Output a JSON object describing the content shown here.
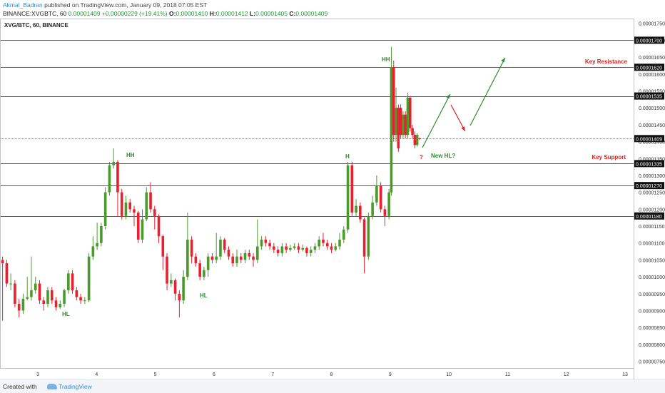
{
  "header": {
    "author": "Akmal_Badran",
    "published": "published on TradingView.com, January 09, 2018 07:05 EST",
    "symbol": "BINANCE:XVGBTC, 60",
    "price": "0.00001409",
    "change": "+0.00000229 (+19.41%)",
    "o_label": "O:",
    "o_value": "0.00001410",
    "h_label": "H:",
    "h_value": "0.00001412",
    "l_label": "L:",
    "l_value": "0.00001405",
    "c_label": "C:",
    "c_value": "0.00001409"
  },
  "footer": {
    "created_with": "Created with",
    "brand": "TradingView"
  },
  "colors": {
    "up": "#4a9a2c",
    "down": "#e8202f",
    "annot_green": "#2e8b2e",
    "annot_red": "#e02020"
  },
  "chart_data": {
    "type": "candlestick",
    "title": "XVG/BTC, 60, BINANCE",
    "xlabel": "",
    "ylabel": "",
    "x_tick_labels": [
      "3",
      "4",
      "5",
      "6",
      "7",
      "8",
      "9",
      "10",
      "11",
      "12",
      "13"
    ],
    "ylim": [
      7.3e-06,
      1.76e-05
    ],
    "y_tick_labels": [
      "0.00000750",
      "0.00000800",
      "0.00000850",
      "0.00000900",
      "0.00000950",
      "0.00001000",
      "0.00001050",
      "0.00001100",
      "0.00001150",
      "0.00001200",
      "0.00001250",
      "0.00001300",
      "0.00001350",
      "0.00001400",
      "0.00001450",
      "0.00001500",
      "0.00001550",
      "0.00001600",
      "0.00001650",
      "0.00001700",
      "0.00001750"
    ],
    "horizontal_levels": [
      "0.00001700",
      "0.00001620",
      "0.00001535",
      "0.00001335",
      "0.00001270",
      "0.00001180"
    ],
    "last_price": "0.00001409",
    "annotations": {
      "hh_1": "HH",
      "hh_2": "HH",
      "h": "H",
      "hl_1": "HL",
      "hl_2": "HL",
      "question": "?",
      "new_hl": "New HL?",
      "key_resistance": "Key Resistance",
      "key_support": "Key Support"
    },
    "candles": [
      [
        2.05,
        1162,
        1167,
        1144,
        1179
      ],
      [
        2.12,
        1167,
        1175,
        1155,
        1190
      ],
      [
        2.19,
        1175,
        1151,
        1140,
        1182
      ],
      [
        2.26,
        1151,
        1090,
        1078,
        1158
      ],
      [
        2.33,
        1090,
        1050,
        1040,
        1100
      ],
      [
        2.4,
        1050,
        1040,
        870,
        1060
      ],
      [
        2.47,
        1040,
        980,
        970,
        1050
      ],
      [
        2.54,
        980,
        980,
        960,
        1010
      ],
      [
        2.61,
        980,
        920,
        910,
        990
      ],
      [
        2.68,
        920,
        900,
        880,
        935
      ],
      [
        2.75,
        900,
        935,
        890,
        950
      ],
      [
        2.82,
        935,
        940,
        930,
        1000
      ],
      [
        2.89,
        940,
        960,
        930,
        1060
      ],
      [
        2.96,
        960,
        980,
        950,
        1000
      ],
      [
        3.03,
        980,
        930,
        920,
        990
      ],
      [
        3.1,
        930,
        920,
        900,
        940
      ],
      [
        3.17,
        920,
        960,
        910,
        970
      ],
      [
        3.24,
        960,
        930,
        920,
        970
      ],
      [
        3.31,
        930,
        910,
        900,
        940
      ],
      [
        3.38,
        910,
        920,
        905,
        930
      ],
      [
        3.45,
        920,
        960,
        910,
        965
      ],
      [
        3.52,
        960,
        1010,
        950,
        1020
      ],
      [
        3.59,
        1010,
        960,
        950,
        1020
      ],
      [
        3.66,
        960,
        940,
        930,
        970
      ],
      [
        3.73,
        940,
        930,
        920,
        950
      ],
      [
        3.8,
        930,
        930,
        920,
        940
      ],
      [
        3.87,
        930,
        1060,
        925,
        1070
      ],
      [
        3.94,
        1060,
        1090,
        1050,
        1120
      ],
      [
        4.01,
        1090,
        1100,
        1080,
        1160
      ],
      [
        4.08,
        1100,
        1150,
        1090,
        1160
      ],
      [
        4.15,
        1150,
        1250,
        1140,
        1265
      ],
      [
        4.22,
        1250,
        1330,
        1240,
        1340
      ],
      [
        4.29,
        1330,
        1340,
        1320,
        1380
      ],
      [
        4.36,
        1340,
        1250,
        1180,
        1345
      ],
      [
        4.43,
        1250,
        1180,
        1170,
        1260
      ],
      [
        4.5,
        1180,
        1220,
        1170,
        1240
      ],
      [
        4.57,
        1220,
        1200,
        1190,
        1230
      ],
      [
        4.64,
        1200,
        1190,
        1150,
        1210
      ],
      [
        4.71,
        1190,
        1110,
        1100,
        1195
      ],
      [
        4.78,
        1110,
        1170,
        1100,
        1200
      ],
      [
        4.85,
        1170,
        1250,
        1165,
        1265
      ],
      [
        4.92,
        1250,
        1200,
        1190,
        1280
      ],
      [
        4.99,
        1200,
        1180,
        1140,
        1210
      ],
      [
        5.06,
        1180,
        1120,
        1100,
        1185
      ],
      [
        5.13,
        1120,
        1060,
        1020,
        1125
      ],
      [
        5.2,
        1060,
        980,
        960,
        1070
      ],
      [
        5.27,
        980,
        990,
        970,
        1010
      ],
      [
        5.34,
        990,
        950,
        930,
        995
      ],
      [
        5.41,
        950,
        930,
        880,
        960
      ],
      [
        5.48,
        930,
        1000,
        920,
        1020
      ],
      [
        5.55,
        1000,
        1110,
        990,
        1190
      ],
      [
        5.62,
        1110,
        1060,
        1040,
        1120
      ],
      [
        5.69,
        1060,
        1040,
        1030,
        1070
      ],
      [
        5.76,
        1040,
        1000,
        990,
        1050
      ],
      [
        5.83,
        1000,
        1020,
        990,
        1030
      ],
      [
        5.9,
        1020,
        1060,
        1000,
        1070
      ],
      [
        5.97,
        1060,
        1050,
        1040,
        1070
      ],
      [
        6.04,
        1050,
        1060,
        1040,
        1130
      ],
      [
        6.11,
        1060,
        1110,
        1050,
        1120
      ],
      [
        6.18,
        1110,
        1080,
        1070,
        1115
      ],
      [
        6.25,
        1080,
        1060,
        1050,
        1090
      ],
      [
        6.32,
        1060,
        1040,
        1030,
        1070
      ],
      [
        6.39,
        1040,
        1060,
        1030,
        1080
      ],
      [
        6.46,
        1060,
        1050,
        1040,
        1070
      ],
      [
        6.53,
        1050,
        1070,
        1040,
        1080
      ],
      [
        6.6,
        1070,
        1060,
        1050,
        1080
      ],
      [
        6.67,
        1060,
        1050,
        1030,
        1070
      ],
      [
        6.74,
        1050,
        1090,
        1040,
        1170
      ],
      [
        6.81,
        1090,
        1110,
        1080,
        1120
      ],
      [
        6.88,
        1110,
        1100,
        1090,
        1120
      ],
      [
        6.95,
        1100,
        1090,
        1080,
        1110
      ],
      [
        7.02,
        1090,
        1080,
        1070,
        1100
      ],
      [
        7.09,
        1080,
        1070,
        1060,
        1090
      ],
      [
        7.16,
        1070,
        1090,
        1060,
        1100
      ],
      [
        7.23,
        1090,
        1080,
        1070,
        1100
      ],
      [
        7.3,
        1080,
        1085,
        1075,
        1095
      ],
      [
        7.37,
        1085,
        1090,
        1080,
        1100
      ],
      [
        7.44,
        1090,
        1080,
        1070,
        1100
      ],
      [
        7.51,
        1080,
        1085,
        1075,
        1095
      ],
      [
        7.58,
        1085,
        1070,
        1060,
        1090
      ],
      [
        7.65,
        1070,
        1080,
        1060,
        1090
      ],
      [
        7.72,
        1080,
        1090,
        1070,
        1100
      ],
      [
        7.79,
        1090,
        1110,
        1080,
        1120
      ],
      [
        7.86,
        1110,
        1100,
        1090,
        1130
      ],
      [
        7.93,
        1100,
        1090,
        1080,
        1110
      ],
      [
        8.0,
        1090,
        1080,
        1070,
        1100
      ],
      [
        8.07,
        1080,
        1090,
        1075,
        1100
      ],
      [
        8.14,
        1090,
        1110,
        1080,
        1130
      ],
      [
        8.21,
        1110,
        1140,
        1100,
        1150
      ],
      [
        8.28,
        1140,
        1330,
        1130,
        1340
      ],
      [
        8.35,
        1330,
        1190,
        1180,
        1340
      ],
      [
        8.42,
        1190,
        1210,
        1180,
        1230
      ],
      [
        8.49,
        1210,
        1170,
        1160,
        1220
      ],
      [
        8.56,
        1170,
        1060,
        1010,
        1175
      ],
      [
        8.63,
        1060,
        1180,
        1050,
        1190
      ],
      [
        8.7,
        1180,
        1220,
        1170,
        1240
      ],
      [
        8.77,
        1220,
        1270,
        1210,
        1300
      ],
      [
        8.84,
        1270,
        1200,
        1190,
        1280
      ],
      [
        8.91,
        1200,
        1180,
        1150,
        1210
      ],
      [
        8.98,
        1180,
        1250,
        1170,
        1260
      ],
      [
        9.02,
        1250,
        1620,
        1240,
        1680
      ],
      [
        9.06,
        1620,
        1420,
        1400,
        1640
      ],
      [
        9.1,
        1420,
        1500,
        1400,
        1560
      ],
      [
        9.14,
        1500,
        1380,
        1370,
        1510
      ],
      [
        9.18,
        1500,
        1420,
        1410,
        1510
      ],
      [
        9.22,
        1420,
        1480,
        1410,
        1490
      ],
      [
        9.26,
        1480,
        1420,
        1410,
        1490
      ],
      [
        9.3,
        1420,
        1530,
        1410,
        1545
      ],
      [
        9.34,
        1530,
        1440,
        1430,
        1535
      ],
      [
        9.38,
        1440,
        1420,
        1410,
        1450
      ],
      [
        9.42,
        1420,
        1390,
        1380,
        1430
      ],
      [
        9.46,
        1390,
        1420,
        1385,
        1425
      ],
      [
        9.5,
        1410,
        1409,
        1405,
        1412
      ]
    ]
  }
}
